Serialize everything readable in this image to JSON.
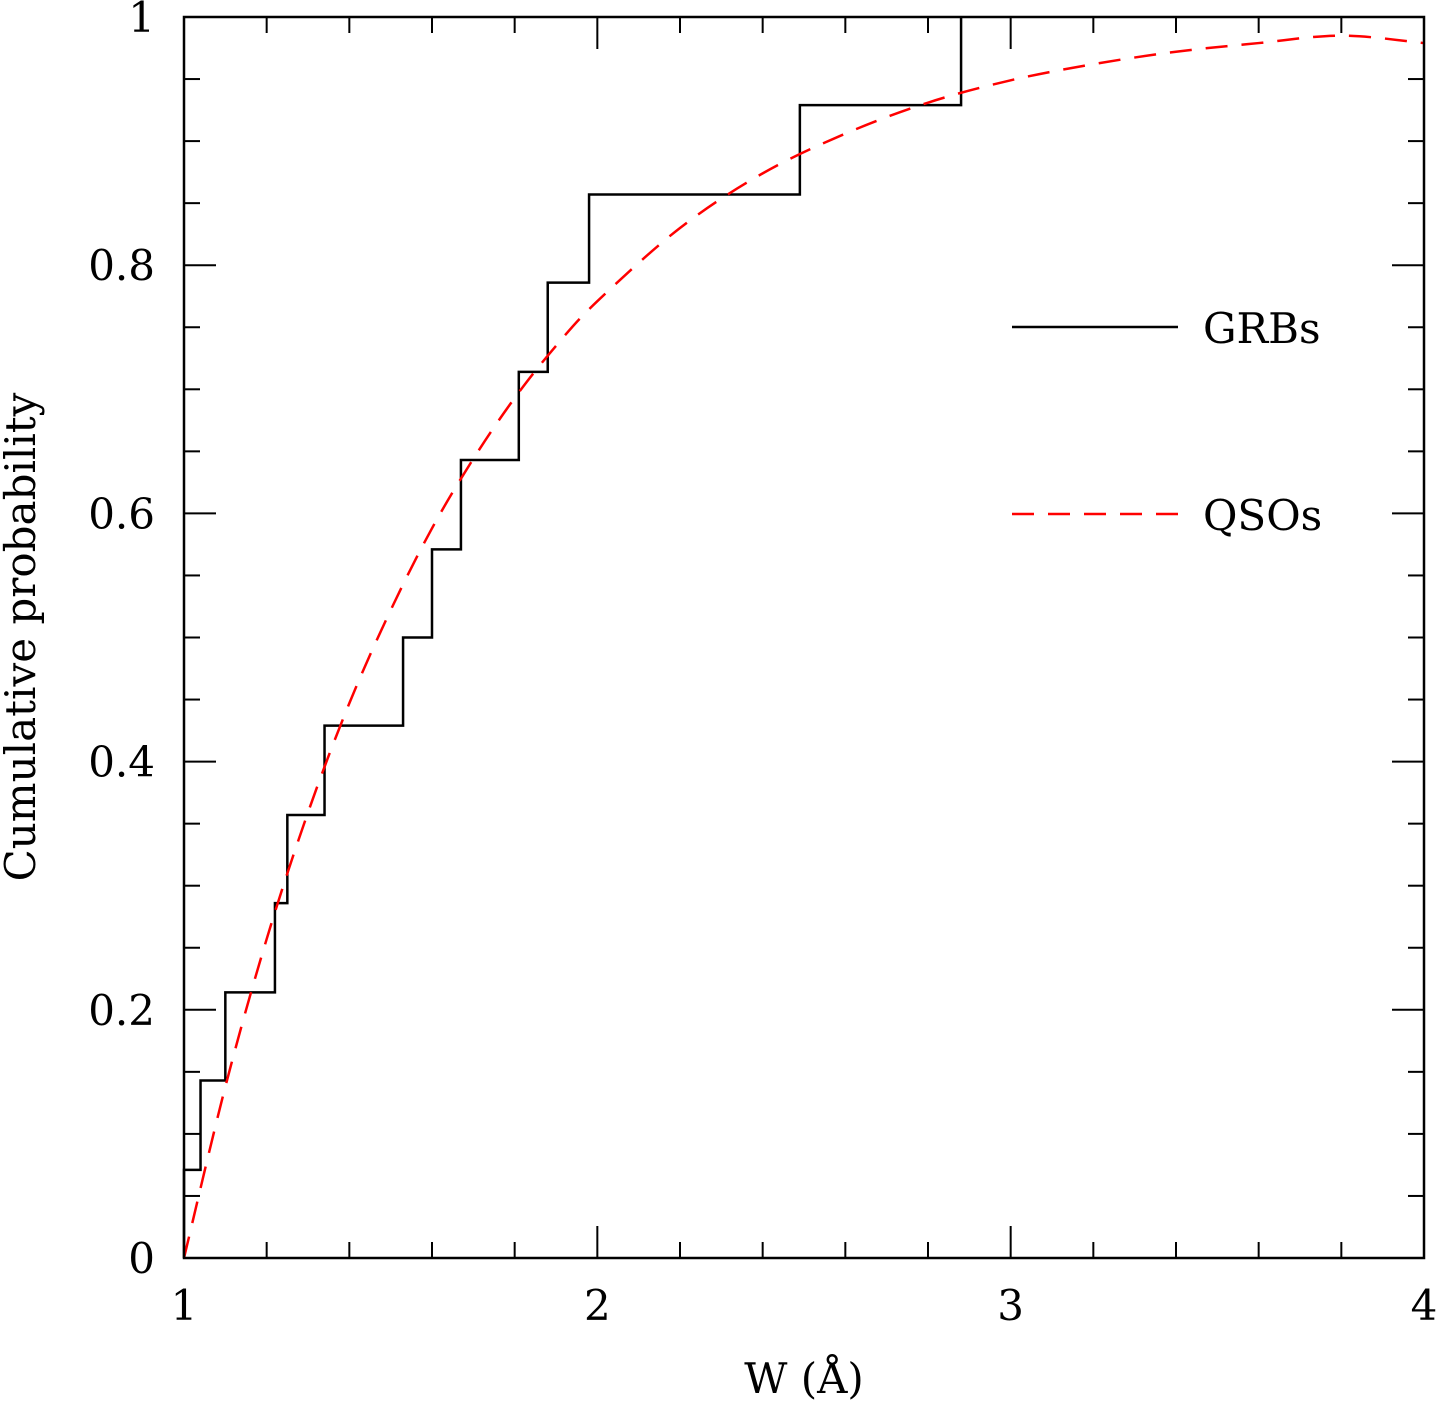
{
  "chart_data": {
    "type": "line",
    "title": "",
    "xlabel": "W (Å)",
    "ylabel": "Cumulative probability",
    "xlim": [
      1,
      4
    ],
    "ylim": [
      0,
      1
    ],
    "x_major_ticks": [
      1,
      2,
      3,
      4
    ],
    "x_tick_labels": [
      "1",
      "2",
      "3",
      "4"
    ],
    "y_major_ticks": [
      0,
      0.2,
      0.4,
      0.6,
      0.8,
      1
    ],
    "y_tick_labels": [
      "0",
      "0.2",
      "0.4",
      "0.6",
      "0.8",
      "1"
    ],
    "legend_position": "right",
    "series": [
      {
        "name": "GRBs",
        "style": "solid-step",
        "color": "#000000",
        "x": [
          1.0,
          1.04,
          1.1,
          1.22,
          1.25,
          1.34,
          1.53,
          1.6,
          1.67,
          1.81,
          1.88,
          1.98,
          2.49,
          2.88
        ],
        "y": [
          0.071,
          0.143,
          0.214,
          0.286,
          0.357,
          0.429,
          0.5,
          0.571,
          0.643,
          0.714,
          0.786,
          0.857,
          0.929,
          1.0
        ]
      },
      {
        "name": "QSOs",
        "style": "dashed",
        "color": "#ff0000",
        "x": [
          1.0,
          1.1,
          1.2,
          1.3,
          1.4,
          1.5,
          1.6,
          1.7,
          1.8,
          1.9,
          2.0,
          2.2,
          2.4,
          2.6,
          2.8,
          3.0,
          3.2,
          3.4,
          3.6,
          3.8,
          4.0
        ],
        "y": [
          0.0,
          0.138,
          0.257,
          0.359,
          0.447,
          0.522,
          0.588,
          0.644,
          0.693,
          0.735,
          0.771,
          0.83,
          0.874,
          0.906,
          0.931,
          0.949,
          0.962,
          0.972,
          0.979,
          0.985,
          0.979
        ]
      }
    ]
  }
}
